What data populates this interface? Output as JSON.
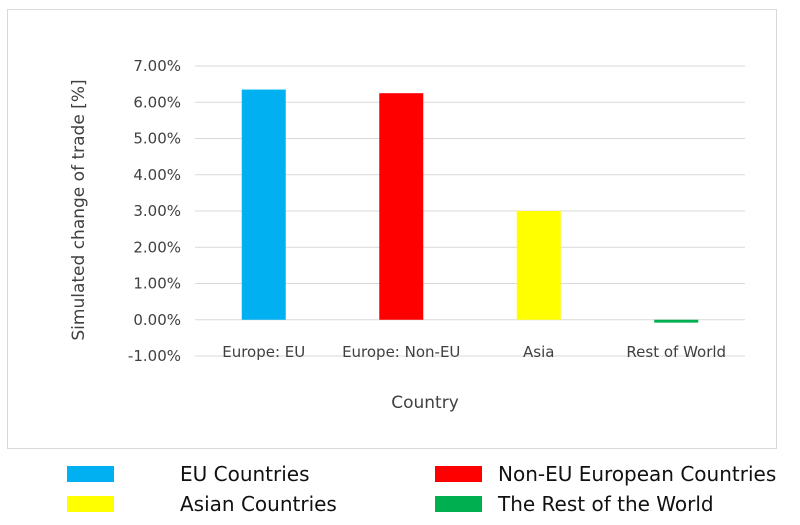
{
  "chart_data": {
    "type": "bar",
    "title": "",
    "xlabel": "Country",
    "ylabel": "Simulated change of trade [%]",
    "categories": [
      "Europe: EU",
      "Europe: Non-EU",
      "Asia",
      "Rest of World"
    ],
    "values": [
      6.35,
      6.25,
      3.0,
      -0.08
    ],
    "colors": [
      "#00b0f0",
      "#ff0000",
      "#ffff00",
      "#00b050"
    ],
    "ylim": [
      -1.0,
      7.0
    ],
    "yticks": [
      "7.00%",
      "6.00%",
      "5.00%",
      "4.00%",
      "3.00%",
      "2.00%",
      "1.00%",
      "0.00%",
      "-1.00%"
    ],
    "grid": true,
    "legend_position": "bottom",
    "legend": [
      {
        "label": "EU Countries",
        "color": "#00b0f0"
      },
      {
        "label": "Non-EU European Countries",
        "color": "#ff0000"
      },
      {
        "label": "Asian Countries",
        "color": "#ffff00"
      },
      {
        "label": "The Rest of the World",
        "color": "#00b050"
      }
    ]
  }
}
